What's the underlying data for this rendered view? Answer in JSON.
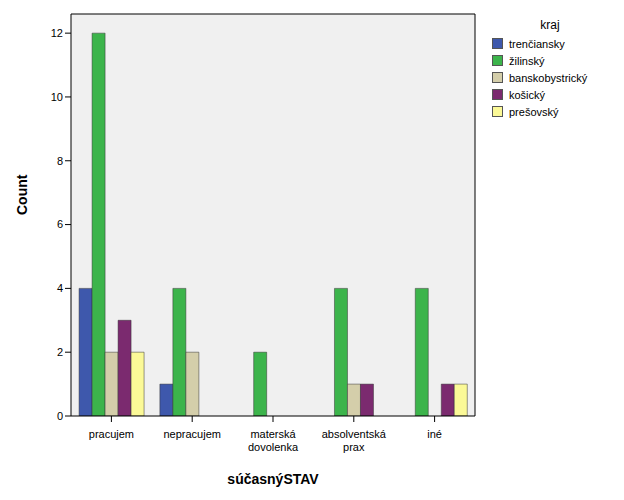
{
  "chart_data": {
    "type": "bar",
    "x_label": "súčasnýSTAV",
    "y_label": "Count",
    "legend_title": "kraj",
    "categories": [
      "pracujem",
      "nepracujem",
      "materská dovolenka",
      "absolventská prax",
      "iné"
    ],
    "series": [
      {
        "name": "trenčiansky",
        "color": "#3e58ac",
        "values": [
          4,
          1,
          0,
          0,
          0
        ]
      },
      {
        "name": "žilinský",
        "color": "#3cb44b",
        "values": [
          12,
          4,
          2,
          4,
          4
        ]
      },
      {
        "name": "banskobystrický",
        "color": "#d4ceaa",
        "values": [
          2,
          2,
          0,
          1,
          0
        ]
      },
      {
        "name": "košický",
        "color": "#7b2a6f",
        "values": [
          3,
          0,
          0,
          1,
          1
        ]
      },
      {
        "name": "prešovský",
        "color": "#fbf997",
        "values": [
          2,
          0,
          0,
          0,
          1
        ]
      }
    ],
    "ylim": [
      0,
      12.6
    ],
    "yticks": [
      0,
      2,
      4,
      6,
      8,
      10,
      12
    ],
    "grid": false,
    "legend": "top right"
  }
}
